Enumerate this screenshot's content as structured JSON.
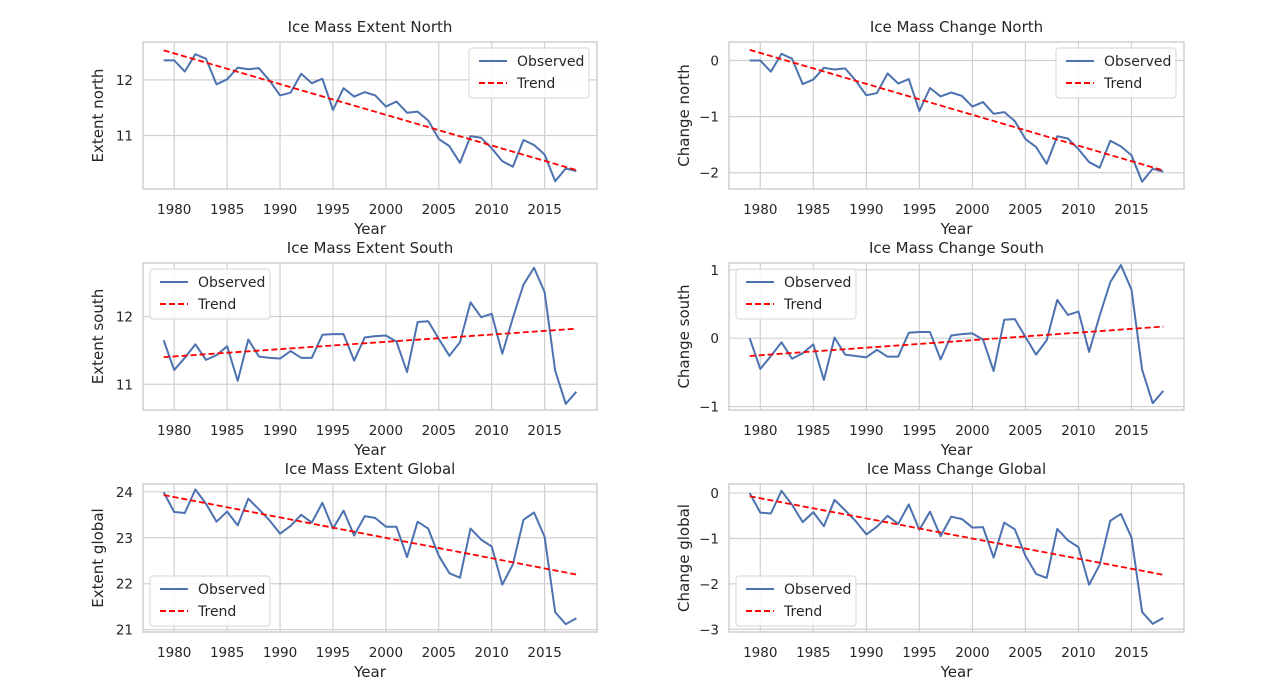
{
  "chart_data": [
    {
      "type": "line",
      "title": "Ice Mass Extent North",
      "xlabel": "Year",
      "ylabel": "Extent north",
      "xlim": [
        1977.05,
        1919.95
      ],
      "xticks": [
        1980,
        1985,
        1990,
        1995,
        2000,
        2005,
        2010,
        2015
      ],
      "ylim": [
        10.04,
        12.68
      ],
      "yticks": [
        11,
        12
      ],
      "grid": true,
      "legend_position": "top-right",
      "series": [
        {
          "name": "Observed",
          "color": "#4c72b0",
          "x": [
            1979,
            1980,
            1981,
            1982,
            1983,
            1984,
            1985,
            1986,
            1987,
            1988,
            1989,
            1990,
            1991,
            1992,
            1993,
            1994,
            1995,
            1996,
            1997,
            1998,
            1999,
            2000,
            2001,
            2002,
            2003,
            2004,
            2005,
            2006,
            2007,
            2008,
            2009,
            2010,
            2011,
            2012,
            2013,
            2014,
            2015,
            2016,
            2017,
            2018
          ],
          "y": [
            12.35,
            12.35,
            12.15,
            12.46,
            12.38,
            11.92,
            12.01,
            12.22,
            12.19,
            12.21,
            11.99,
            11.72,
            11.77,
            12.11,
            11.94,
            12.02,
            11.46,
            11.85,
            11.7,
            11.78,
            11.72,
            11.52,
            11.61,
            11.41,
            11.43,
            11.27,
            10.94,
            10.81,
            10.51,
            10.99,
            10.96,
            10.77,
            10.54,
            10.44,
            10.92,
            10.83,
            10.66,
            10.18,
            10.41,
            10.36
          ]
        },
        {
          "name": "Trend",
          "color": "#ff0000",
          "dashed": true,
          "x": [
            1979,
            2018
          ],
          "y": [
            12.53,
            10.38
          ]
        }
      ]
    },
    {
      "type": "line",
      "title": "Ice Mass Change North",
      "xlabel": "Year",
      "ylabel": "Change north",
      "xlim": [
        1977.05,
        2019.95
      ],
      "xticks": [
        1980,
        1985,
        1990,
        1995,
        2000,
        2005,
        2010,
        2015
      ],
      "ylim": [
        -2.29,
        0.33
      ],
      "yticks": [
        -2,
        -1,
        0
      ],
      "grid": true,
      "legend_position": "top-right",
      "series": [
        {
          "name": "Observed",
          "color": "#4c72b0",
          "x": [
            1979,
            1980,
            1981,
            1982,
            1983,
            1984,
            1985,
            1986,
            1987,
            1988,
            1989,
            1990,
            1991,
            1992,
            1993,
            1994,
            1995,
            1996,
            1997,
            1998,
            1999,
            2000,
            2001,
            2002,
            2003,
            2004,
            2005,
            2006,
            2007,
            2008,
            2009,
            2010,
            2011,
            2012,
            2013,
            2014,
            2015,
            2016,
            2017,
            2018
          ],
          "y": [
            0.0,
            0.0,
            -0.2,
            0.12,
            0.03,
            -0.42,
            -0.34,
            -0.13,
            -0.16,
            -0.14,
            -0.36,
            -0.62,
            -0.58,
            -0.23,
            -0.41,
            -0.33,
            -0.9,
            -0.49,
            -0.64,
            -0.57,
            -0.63,
            -0.82,
            -0.74,
            -0.95,
            -0.92,
            -1.08,
            -1.4,
            -1.54,
            -1.84,
            -1.35,
            -1.39,
            -1.58,
            -1.81,
            -1.91,
            -1.43,
            -1.53,
            -1.69,
            -2.16,
            -1.93,
            -1.98
          ]
        },
        {
          "name": "Trend",
          "color": "#ff0000",
          "dashed": true,
          "x": [
            1979,
            2018
          ],
          "y": [
            0.19,
            -1.96
          ]
        }
      ]
    },
    {
      "type": "line",
      "title": "Ice Mass Extent South",
      "xlabel": "Year",
      "ylabel": "Extent south",
      "xlim": [
        1977.05,
        2019.95
      ],
      "xticks": [
        1980,
        1985,
        1990,
        1995,
        2000,
        2005,
        2010,
        2015
      ],
      "ylim": [
        10.62,
        12.79
      ],
      "yticks": [
        11,
        12
      ],
      "grid": true,
      "legend_position": "top-left",
      "series": [
        {
          "name": "Observed",
          "color": "#4c72b0",
          "x": [
            1979,
            1980,
            1981,
            1982,
            1983,
            1984,
            1985,
            1986,
            1987,
            1988,
            1989,
            1990,
            1991,
            1992,
            1993,
            1994,
            1995,
            1996,
            1997,
            1998,
            1999,
            2000,
            2001,
            2002,
            2003,
            2004,
            2005,
            2006,
            2007,
            2008,
            2009,
            2010,
            2011,
            2012,
            2013,
            2014,
            2015,
            2016,
            2017,
            2018
          ],
          "y": [
            11.65,
            11.21,
            11.39,
            11.59,
            11.36,
            11.43,
            11.56,
            11.05,
            11.66,
            11.41,
            11.39,
            11.38,
            11.49,
            11.39,
            11.39,
            11.73,
            11.74,
            11.74,
            11.35,
            11.69,
            11.71,
            11.72,
            11.63,
            11.18,
            11.92,
            11.93,
            11.67,
            11.42,
            11.62,
            12.21,
            11.99,
            12.04,
            11.45,
            11.98,
            12.47,
            12.72,
            12.36,
            11.2,
            10.71,
            10.89
          ]
        },
        {
          "name": "Trend",
          "color": "#ff0000",
          "dashed": true,
          "x": [
            1979,
            2018
          ],
          "y": [
            11.4,
            11.82
          ]
        }
      ]
    },
    {
      "type": "line",
      "title": "Ice Mass Change South",
      "xlabel": "Year",
      "ylabel": "Change south",
      "xlim": [
        1977.05,
        2019.95
      ],
      "xticks": [
        1980,
        1985,
        1990,
        1995,
        2000,
        2005,
        2010,
        2015
      ],
      "ylim": [
        -1.05,
        1.1
      ],
      "yticks": [
        -1,
        0,
        1
      ],
      "grid": true,
      "legend_position": "top-left",
      "series": [
        {
          "name": "Observed",
          "color": "#4c72b0",
          "x": [
            1979,
            1980,
            1981,
            1982,
            1983,
            1984,
            1985,
            1986,
            1987,
            1988,
            1989,
            1990,
            1991,
            1992,
            1993,
            1994,
            1995,
            1996,
            1997,
            1998,
            1999,
            2000,
            2001,
            2002,
            2003,
            2004,
            2005,
            2006,
            2007,
            2008,
            2009,
            2010,
            2011,
            2012,
            2013,
            2014,
            2015,
            2016,
            2017,
            2018
          ],
          "y": [
            0.0,
            -0.45,
            -0.26,
            -0.06,
            -0.3,
            -0.22,
            -0.09,
            -0.61,
            0.01,
            -0.24,
            -0.26,
            -0.28,
            -0.17,
            -0.27,
            -0.27,
            0.08,
            0.09,
            0.09,
            -0.31,
            0.04,
            0.06,
            0.07,
            -0.02,
            -0.48,
            0.27,
            0.28,
            0.02,
            -0.24,
            -0.03,
            0.56,
            0.34,
            0.39,
            -0.2,
            0.33,
            0.82,
            1.07,
            0.71,
            -0.46,
            -0.95,
            -0.77
          ]
        },
        {
          "name": "Trend",
          "color": "#ff0000",
          "dashed": true,
          "x": [
            1979,
            2018
          ],
          "y": [
            -0.26,
            0.17
          ]
        }
      ]
    },
    {
      "type": "line",
      "title": "Ice Mass Extent Global",
      "xlabel": "Year",
      "ylabel": "Extent global",
      "xlim": [
        1977.05,
        2019.95
      ],
      "xticks": [
        1980,
        1985,
        1990,
        1995,
        2000,
        2005,
        2010,
        2015
      ],
      "ylim": [
        20.95,
        24.17
      ],
      "yticks": [
        21,
        22,
        23,
        24
      ],
      "grid": true,
      "legend_position": "bottom-left",
      "series": [
        {
          "name": "Observed",
          "color": "#4c72b0",
          "x": [
            1979,
            1980,
            1981,
            1982,
            1983,
            1984,
            1985,
            1986,
            1987,
            1988,
            1989,
            1990,
            1991,
            1992,
            1993,
            1994,
            1995,
            1996,
            1997,
            1998,
            1999,
            2000,
            2001,
            2002,
            2003,
            2004,
            2005,
            2006,
            2007,
            2008,
            2009,
            2010,
            2011,
            2012,
            2013,
            2014,
            2015,
            2016,
            2017,
            2018
          ],
          "y": [
            23.99,
            23.56,
            23.54,
            24.05,
            23.74,
            23.35,
            23.57,
            23.27,
            23.85,
            23.62,
            23.38,
            23.09,
            23.26,
            23.5,
            23.33,
            23.76,
            23.2,
            23.59,
            23.05,
            23.47,
            23.43,
            23.24,
            23.24,
            22.58,
            23.35,
            23.2,
            22.61,
            22.23,
            22.13,
            23.2,
            22.96,
            22.81,
            21.98,
            22.42,
            23.39,
            23.55,
            23.02,
            21.38,
            21.12,
            21.25
          ]
        },
        {
          "name": "Trend",
          "color": "#ff0000",
          "dashed": true,
          "x": [
            1979,
            2018
          ],
          "y": [
            23.93,
            22.2
          ]
        }
      ]
    },
    {
      "type": "line",
      "title": "Ice Mass Change Global",
      "xlabel": "Year",
      "ylabel": "Change global",
      "xlim": [
        1977.05,
        2019.95
      ],
      "xticks": [
        1980,
        1985,
        1990,
        1995,
        2000,
        2005,
        2010,
        2015
      ],
      "ylim": [
        -3.06,
        0.2
      ],
      "yticks": [
        -3,
        -2,
        -1,
        0
      ],
      "grid": true,
      "legend_position": "bottom-left",
      "series": [
        {
          "name": "Observed",
          "color": "#4c72b0",
          "x": [
            1979,
            1980,
            1981,
            1982,
            1983,
            1984,
            1985,
            1986,
            1987,
            1988,
            1989,
            1990,
            1991,
            1992,
            1993,
            1994,
            1995,
            1996,
            1997,
            1998,
            1999,
            2000,
            2001,
            2002,
            2003,
            2004,
            2005,
            2006,
            2007,
            2008,
            2009,
            2010,
            2011,
            2012,
            2013,
            2014,
            2015,
            2016,
            2017,
            2018
          ],
          "y": [
            0.0,
            -0.43,
            -0.45,
            0.05,
            -0.26,
            -0.64,
            -0.42,
            -0.73,
            -0.15,
            -0.38,
            -0.62,
            -0.91,
            -0.74,
            -0.5,
            -0.68,
            -0.25,
            -0.81,
            -0.41,
            -0.95,
            -0.52,
            -0.57,
            -0.76,
            -0.75,
            -1.42,
            -0.65,
            -0.8,
            -1.38,
            -1.78,
            -1.87,
            -0.79,
            -1.04,
            -1.19,
            -2.02,
            -1.58,
            -0.61,
            -0.46,
            -0.98,
            -2.62,
            -2.88,
            -2.75
          ]
        },
        {
          "name": "Trend",
          "color": "#ff0000",
          "dashed": true,
          "x": [
            1979,
            2018
          ],
          "y": [
            -0.07,
            -1.8
          ]
        }
      ]
    }
  ]
}
